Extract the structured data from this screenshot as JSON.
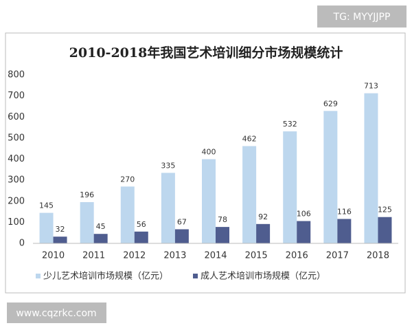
{
  "watermarks": [
    "TG: MYYJJPP",
    "www.cqzrkc.com"
  ],
  "chart_data": {
    "type": "bar",
    "title": "2010-2018年我国艺术培训细分市场规模统计",
    "categories": [
      "2010",
      "2011",
      "2012",
      "2013",
      "2014",
      "2015",
      "2016",
      "2017",
      "2018"
    ],
    "series": [
      {
        "name": "少儿艺术培训市场规模（亿元）",
        "color": "#bdd7ee",
        "values": [
          145,
          196,
          270,
          335,
          400,
          462,
          532,
          629,
          713
        ]
      },
      {
        "name": "成人艺术培训市场规模（亿元）",
        "color": "#4f5d8f",
        "values": [
          32,
          45,
          56,
          67,
          78,
          92,
          106,
          116,
          125
        ]
      }
    ],
    "ylim": [
      0,
      800
    ],
    "yticks": [
      0,
      100,
      200,
      300,
      400,
      500,
      600,
      700,
      800
    ],
    "grid": false,
    "legend": "bottom"
  }
}
